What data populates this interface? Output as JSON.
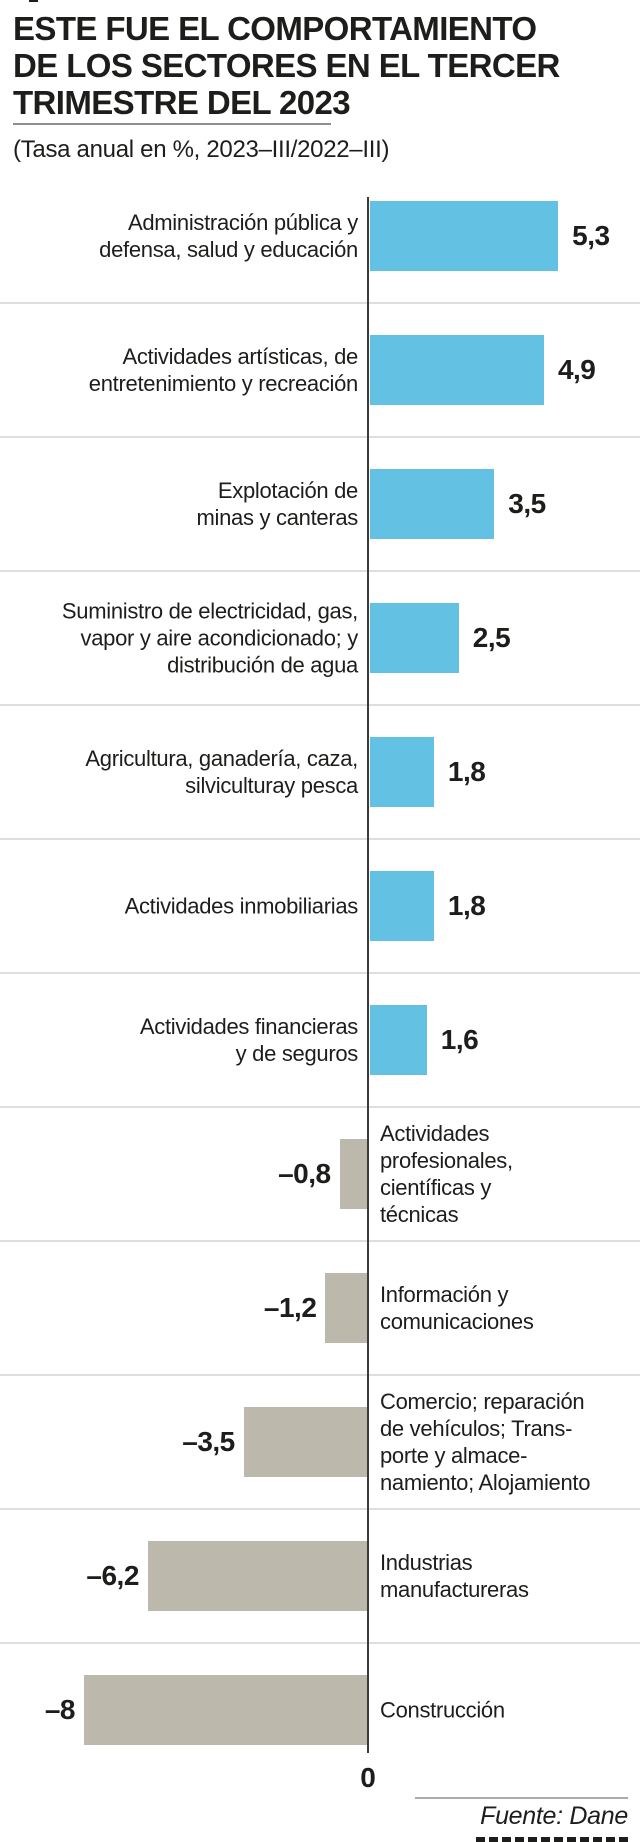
{
  "title": {
    "lines": [
      "ESTE FUE EL COMPORTAMIENTO",
      "DE LOS SECTORES EN EL TERCER",
      "TRIMESTRE DEL 2023"
    ]
  },
  "subtitle": "(Tasa anual en %, 2023–III/2022–III)",
  "axis": {
    "zero_label": "0"
  },
  "source": {
    "label": "Fuente: Dane"
  },
  "colors": {
    "positive_bar": "#63c1e3",
    "negative_bar": "#bcb9ac",
    "axis": "#3b3b3a",
    "separator": "#dededa",
    "text": "#1d1d1b"
  },
  "chart_data": {
    "type": "bar",
    "orientation": "horizontal",
    "title": "ESTE FUE EL COMPORTAMIENTO DE LOS SECTORES EN EL TERCER TRIMESTRE DEL 2023",
    "subtitle": "(Tasa anual en %, 2023–III/2022–III)",
    "unit": "%",
    "xlim": [
      -8,
      5.3
    ],
    "zero_tick_label": "0",
    "legend": "none",
    "grid": "row separators only",
    "categories": [
      "Administración pública y defensa, salud y educación",
      "Actividades artísticas, de entretenimiento y recreación",
      "Explotación de minas y canteras",
      "Suministro de electricidad, gas, vapor y aire acondicionado; y distribución de agua",
      "Agricultura, ganadería, caza, silviculturay pesca",
      "Actividades inmobiliarias",
      "Actividades financieras y de seguros",
      "Actividades profesionales, científicas y técnicas",
      "Información y comunicaciones",
      "Comercio; reparación de vehículos; Transporte y almacenamiento; Alojamiento",
      "Industrias manufactureras",
      "Construcción"
    ],
    "values": [
      5.3,
      4.9,
      3.5,
      2.5,
      1.8,
      1.8,
      1.6,
      -0.8,
      -1.2,
      -3.5,
      -6.2,
      -8
    ],
    "bars": [
      {
        "label_lines": [
          "Administración pública y",
          "defensa, salud y educación"
        ],
        "value": 5.3,
        "display_value": "5,3"
      },
      {
        "label_lines": [
          "Actividades artísticas, de",
          "entretenimiento y recreación"
        ],
        "value": 4.9,
        "display_value": "4,9"
      },
      {
        "label_lines": [
          "Explotación de",
          "minas y canteras"
        ],
        "value": 3.5,
        "display_value": "3,5"
      },
      {
        "label_lines": [
          "Suministro de electricidad, gas,",
          "vapor y aire acondicionado; y",
          "distribución de agua"
        ],
        "value": 2.5,
        "display_value": "2,5"
      },
      {
        "label_lines": [
          "Agricultura, ganadería, caza,",
          "silviculturay pesca"
        ],
        "value": 1.8,
        "display_value": "1,8"
      },
      {
        "label_lines": [
          "Actividades inmobiliarias"
        ],
        "value": 1.8,
        "display_value": "1,8"
      },
      {
        "label_lines": [
          "Actividades financieras",
          "y de seguros"
        ],
        "value": 1.6,
        "display_value": "1,6"
      },
      {
        "label_lines": [
          "Actividades",
          "profesionales,",
          "científicas y",
          "técnicas"
        ],
        "value": -0.8,
        "display_value": "–0,8"
      },
      {
        "label_lines": [
          "Información y",
          "comunicaciones"
        ],
        "value": -1.2,
        "display_value": "–1,2"
      },
      {
        "label_lines": [
          "Comercio; reparación",
          "de vehículos; Trans-",
          "porte y almace-",
          "namiento; Alojamiento"
        ],
        "value": -3.5,
        "display_value": "–3,5"
      },
      {
        "label_lines": [
          "Industrias",
          "manufactureras"
        ],
        "value": -6.2,
        "display_value": "–6,2"
      },
      {
        "label_lines": [
          "Construcción"
        ],
        "value": -8,
        "display_value": "–8"
      }
    ]
  }
}
